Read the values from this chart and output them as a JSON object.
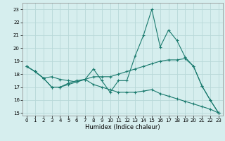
{
  "xlabel": "Humidex (Indice chaleur)",
  "xlim": [
    -0.5,
    23.5
  ],
  "ylim": [
    14.8,
    23.5
  ],
  "yticks": [
    15,
    16,
    17,
    18,
    19,
    20,
    21,
    22,
    23
  ],
  "xticks": [
    0,
    1,
    2,
    3,
    4,
    5,
    6,
    7,
    8,
    9,
    10,
    11,
    12,
    13,
    14,
    15,
    16,
    17,
    18,
    19,
    20,
    21,
    22,
    23
  ],
  "bg_color": "#d6eeee",
  "grid_color": "#b8d8d8",
  "line_color": "#1a7a6e",
  "line1_y": [
    18.6,
    18.2,
    17.7,
    17.0,
    17.0,
    17.3,
    17.5,
    17.6,
    18.4,
    17.5,
    16.6,
    17.5,
    17.5,
    19.4,
    21.0,
    23.0,
    20.1,
    21.4,
    20.6,
    19.3,
    18.6,
    17.1,
    16.0,
    15.0
  ],
  "line2_y": [
    18.6,
    18.2,
    17.7,
    17.8,
    17.6,
    17.5,
    17.4,
    17.6,
    17.8,
    17.8,
    17.8,
    18.0,
    18.2,
    18.4,
    18.6,
    18.8,
    19.0,
    19.1,
    19.1,
    19.2,
    18.6,
    17.1,
    16.0,
    15.0
  ],
  "line3_y": [
    18.6,
    18.2,
    17.7,
    17.0,
    17.0,
    17.2,
    17.4,
    17.6,
    17.2,
    17.0,
    16.8,
    16.6,
    16.6,
    16.6,
    16.7,
    16.8,
    16.5,
    16.3,
    16.1,
    15.9,
    15.7,
    15.5,
    15.3,
    15.0
  ]
}
